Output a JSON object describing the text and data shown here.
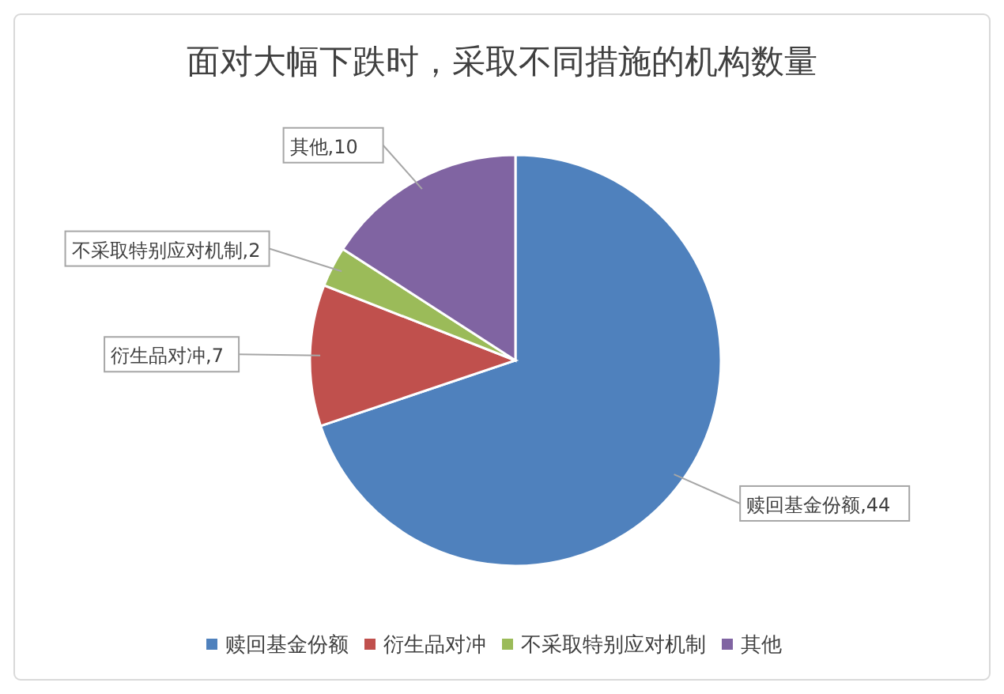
{
  "chart_data": {
    "type": "pie",
    "title": "面对大幅下跌时，采取不同措施的机构数量",
    "categories": [
      "赎回基金份额",
      "衍生品对冲",
      "不采取特别应对机制",
      "其他"
    ],
    "values": [
      44,
      7,
      2,
      10
    ],
    "colors": [
      "#4f81bd",
      "#c0504d",
      "#9bbb59",
      "#8064a2"
    ],
    "value_labels": [
      "赎回基金份额,44",
      "衍生品对冲,7",
      "不采取特别应对机制,2",
      "其他,10"
    ],
    "legend": "bottom"
  }
}
